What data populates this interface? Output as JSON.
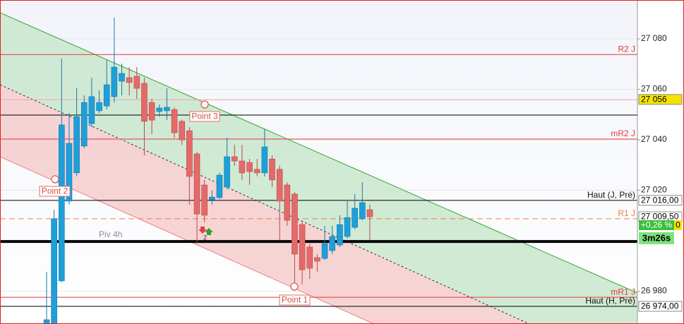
{
  "chart_data": {
    "type": "candlestick",
    "up_color": "#1e9fd8",
    "down_color": "#e46a6a",
    "open": [
      26967,
      26967,
      26984.1,
      27015.7,
      27026.9,
      27037.5,
      27046.4,
      27051.5,
      27053.4,
      27057.1,
      27063.2,
      27064.6,
      27065.2,
      27062.4,
      27054.8,
      27051.2,
      27051.5,
      27052.0,
      27047.3,
      27043.6,
      27034.4,
      27022.1,
      27016.2,
      27017.1,
      27021.3,
      27033.3,
      27031.6,
      27031.0,
      27028.3,
      27026.9,
      27032.4,
      27028.3,
      27022.1,
      27018.5,
      27006.4,
      26997.5,
      26993.3,
      26993.0,
      26996.1,
      26998.3,
      27001.7,
      27005.3,
      27008.7,
      27012.3
    ],
    "high": [
      26987.7,
      27012.3,
      27072.2,
      27050.6,
      27060.4,
      27057.6,
      27064.6,
      27059.6,
      27071.6,
      27088.4,
      27070.2,
      27068.8,
      27068.8,
      27064.6,
      27056.2,
      27054.0,
      27060.4,
      27052.9,
      27048.0,
      27045.0,
      27035.2,
      27024.1,
      27019.9,
      27026.9,
      27040.8,
      27038.0,
      27038.0,
      27032.4,
      27032.4,
      27044.2,
      27033.8,
      27029.7,
      27023.2,
      27019.3,
      27007.3,
      26998.9,
      26994.7,
      27005.9,
      27005.9,
      27010.1,
      27015.7,
      27018.5,
      27023.2,
      27014.3
    ],
    "low": [
      26967,
      26967,
      26983.5,
      27014.3,
      27025.5,
      27036.6,
      27045.0,
      27050.6,
      27052.0,
      27054.8,
      27057.6,
      27057.6,
      27056.2,
      27033.8,
      27042.2,
      27049.2,
      27047.8,
      27040.8,
      27038.0,
      27014.3,
      26998.9,
      27007.3,
      27014.3,
      27016.5,
      27020.4,
      27029.7,
      27024.1,
      27022.1,
      27025.5,
      27025.5,
      27021.3,
      27000.3,
      27005.9,
      26983.5,
      26982.7,
      26984.9,
      26987.7,
      26992.4,
      26994.7,
      26997.5,
      27000.8,
      27004.5,
      27008.1,
      27000.3
    ],
    "close": [
      26968.7,
      27008.7,
      27045.9,
      27038.6,
      27049.2,
      27054.8,
      27057.1,
      27054.8,
      27061.8,
      27068.8,
      27066.3,
      27062.7,
      27060.4,
      27047.3,
      27047.8,
      27052.6,
      27052.9,
      27042.8,
      27040.0,
      27025.5,
      27010.6,
      27010.1,
      27017.3,
      27026.0,
      27033.3,
      27031.6,
      27026.9,
      27027.4,
      27026.9,
      27037.2,
      27024.1,
      27015.7,
      27008.1,
      26994.7,
      26988.5,
      26989.1,
      26991.9,
      26998.9,
      27001.7,
      27006.4,
      27009.2,
      27012.9,
      27015.1,
      27009.5
    ],
    "ylim": [
      26967,
      27095.4
    ],
    "yticks": [
      {
        "value": 26980,
        "label": "26 980"
      },
      {
        "value": 27020,
        "label": "27 020"
      },
      {
        "value": 27040,
        "label": "27 040"
      },
      {
        "value": 27060,
        "label": "27 060"
      },
      {
        "value": 27080,
        "label": "27 080"
      }
    ],
    "grid": true,
    "levels": [
      {
        "value": 27073.8,
        "color": "#e03c3c",
        "label": "R2 J"
      },
      {
        "value": 27055.9,
        "color": "#f0a8a8"
      },
      {
        "value": 27049.8,
        "color": "#000000"
      },
      {
        "value": 27040.3,
        "color": "#e03c3c",
        "label": "mR2 J"
      },
      {
        "value": 27016,
        "color": "#000000",
        "label": "Haut (J, Pré)"
      },
      {
        "value": 27008.7,
        "color": "#f08040",
        "dashed": true,
        "label": "R1 J"
      },
      {
        "value": 26999.7,
        "color": "#000000",
        "width": 4
      },
      {
        "value": 26977.6,
        "color": "#e03c3c",
        "label": "mR1 J"
      },
      {
        "value": 26974,
        "color": "#000000",
        "label": "Haut (H, Pré)"
      }
    ],
    "price_tags": [
      {
        "value": 27056,
        "label": "27 056",
        "color": "#f5e400"
      },
      {
        "value": 27016,
        "label": "27 016,00",
        "color": "#ffffff"
      },
      {
        "value": 27009.5,
        "label": "27 009,50",
        "color": "#ffffff"
      },
      {
        "value": 26974,
        "label": "26 974,00",
        "color": "#ffffff"
      }
    ],
    "change": "+0,26 %",
    "change_extra": "0",
    "timer": "3m26s",
    "pivot_label": "Piv 4h",
    "points": [
      "Point 1",
      "Point 2",
      "Point 3"
    ],
    "signal_count": "2"
  }
}
